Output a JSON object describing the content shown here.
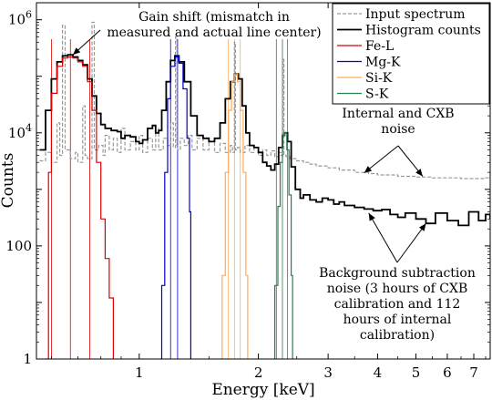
{
  "chart_data": {
    "type": "line",
    "xlabel": "Energy [keV]",
    "ylabel": "Counts",
    "xscale": "log",
    "yscale": "log",
    "xlim": [
      0.55,
      7.7
    ],
    "ylim": [
      1,
      2000000
    ],
    "x_ticks": [
      {
        "value": 1,
        "label": "1"
      },
      {
        "value": 2,
        "label": "2"
      },
      {
        "value": 3,
        "label": "3"
      },
      {
        "value": 4,
        "label": "4"
      },
      {
        "value": 5,
        "label": "5"
      },
      {
        "value": 6,
        "label": "6"
      },
      {
        "value": 7,
        "label": "7"
      }
    ],
    "y_ticks": [
      {
        "value": 1,
        "base": "1",
        "exp": ""
      },
      {
        "value": 100,
        "base": "100",
        "exp": ""
      },
      {
        "value": 10000,
        "base": "10",
        "exp": "4"
      },
      {
        "value": 1000000,
        "base": "10",
        "exp": "6"
      }
    ],
    "grid": false,
    "legend_position": "top-right",
    "series": [
      {
        "name": "Input spectrum",
        "color": "#999999",
        "style": "dashed",
        "points": [
          [
            0.56,
            3200
          ],
          [
            0.58,
            4500
          ],
          [
            0.6,
            3000
          ],
          [
            0.62,
            15000
          ],
          [
            0.63,
            4000
          ],
          [
            0.64,
            800000
          ],
          [
            0.65,
            5000
          ],
          [
            0.67,
            3500
          ],
          [
            0.69,
            4500
          ],
          [
            0.7,
            3000
          ],
          [
            0.72,
            30000
          ],
          [
            0.73,
            4000
          ],
          [
            0.74,
            3500
          ],
          [
            0.76,
            900000
          ],
          [
            0.77,
            5000
          ],
          [
            0.79,
            6000
          ],
          [
            0.81,
            4000
          ],
          [
            0.82,
            9000
          ],
          [
            0.84,
            5000
          ],
          [
            0.86,
            8000
          ],
          [
            0.88,
            4500
          ],
          [
            0.9,
            12000
          ],
          [
            0.92,
            5000
          ],
          [
            0.95,
            7000
          ],
          [
            0.98,
            5000
          ],
          [
            1.0,
            9000
          ],
          [
            1.02,
            4500
          ],
          [
            1.05,
            8000
          ],
          [
            1.08,
            5000
          ],
          [
            1.1,
            12000
          ],
          [
            1.12,
            5000
          ],
          [
            1.15,
            8000
          ],
          [
            1.18,
            6000
          ],
          [
            1.2,
            15000
          ],
          [
            1.22,
            5500
          ],
          [
            1.235,
            500000
          ],
          [
            1.245,
            6000
          ],
          [
            1.25,
            5000
          ],
          [
            1.27,
            8000
          ],
          [
            1.3,
            6000
          ],
          [
            1.33,
            9000
          ],
          [
            1.36,
            5000
          ],
          [
            1.4,
            8000
          ],
          [
            1.45,
            5000
          ],
          [
            1.5,
            7000
          ],
          [
            1.55,
            4500
          ],
          [
            1.6,
            6500
          ],
          [
            1.65,
            4500
          ],
          [
            1.7,
            6000
          ],
          [
            1.72,
            4500
          ],
          [
            1.74,
            400000
          ],
          [
            1.75,
            5000
          ],
          [
            1.77,
            5500
          ],
          [
            1.8,
            4500
          ],
          [
            1.85,
            6000
          ],
          [
            1.9,
            4500
          ],
          [
            1.95,
            5500
          ],
          [
            2.0,
            4000
          ],
          [
            2.05,
            5000
          ],
          [
            2.1,
            4000
          ],
          [
            2.15,
            4800
          ],
          [
            2.2,
            3800
          ],
          [
            2.25,
            4500
          ],
          [
            2.28,
            4000
          ],
          [
            2.307,
            200000
          ],
          [
            2.32,
            4000
          ],
          [
            2.35,
            3800
          ],
          [
            2.4,
            3500
          ],
          [
            2.5,
            3200
          ],
          [
            2.6,
            3000
          ],
          [
            2.7,
            2800
          ],
          [
            2.8,
            2600
          ],
          [
            3.0,
            2400
          ],
          [
            3.2,
            2200
          ],
          [
            3.5,
            2000
          ],
          [
            3.8,
            1900
          ],
          [
            4.0,
            1800
          ],
          [
            4.5,
            1700
          ],
          [
            5.0,
            1650
          ],
          [
            5.5,
            1600
          ],
          [
            6.0,
            1600
          ],
          [
            6.5,
            1550
          ],
          [
            7.0,
            1550
          ],
          [
            7.5,
            1600
          ],
          [
            7.7,
            1700
          ]
        ]
      },
      {
        "name": "Histogram counts",
        "color": "#000000",
        "style": "solid",
        "points": [
          [
            0.56,
            5000
          ],
          [
            0.58,
            25000
          ],
          [
            0.6,
            90000
          ],
          [
            0.62,
            180000
          ],
          [
            0.64,
            230000
          ],
          [
            0.66,
            240000
          ],
          [
            0.68,
            220000
          ],
          [
            0.7,
            190000
          ],
          [
            0.72,
            160000
          ],
          [
            0.74,
            90000
          ],
          [
            0.76,
            45000
          ],
          [
            0.78,
            22000
          ],
          [
            0.8,
            14000
          ],
          [
            0.82,
            12000
          ],
          [
            0.85,
            11000
          ],
          [
            0.88,
            10500
          ],
          [
            0.9,
            8000
          ],
          [
            0.92,
            9000
          ],
          [
            0.95,
            8500
          ],
          [
            0.98,
            7000
          ],
          [
            1.0,
            6500
          ],
          [
            1.02,
            7500
          ],
          [
            1.05,
            12000
          ],
          [
            1.08,
            13500
          ],
          [
            1.1,
            10000
          ],
          [
            1.12,
            11000
          ],
          [
            1.14,
            25000
          ],
          [
            1.17,
            80000
          ],
          [
            1.2,
            190000
          ],
          [
            1.23,
            230000
          ],
          [
            1.26,
            180000
          ],
          [
            1.3,
            80000
          ],
          [
            1.35,
            20000
          ],
          [
            1.4,
            9000
          ],
          [
            1.45,
            8000
          ],
          [
            1.5,
            7000
          ],
          [
            1.55,
            8000
          ],
          [
            1.6,
            15000
          ],
          [
            1.65,
            40000
          ],
          [
            1.7,
            80000
          ],
          [
            1.74,
            110000
          ],
          [
            1.78,
            90000
          ],
          [
            1.82,
            30000
          ],
          [
            1.86,
            10000
          ],
          [
            1.9,
            6000
          ],
          [
            1.95,
            5500
          ],
          [
            2.0,
            4500
          ],
          [
            2.05,
            3000
          ],
          [
            2.1,
            2600
          ],
          [
            2.15,
            2200
          ],
          [
            2.2,
            2800
          ],
          [
            2.25,
            5500
          ],
          [
            2.3,
            9000
          ],
          [
            2.33,
            10000
          ],
          [
            2.37,
            7000
          ],
          [
            2.42,
            2500
          ],
          [
            2.48,
            1000
          ],
          [
            2.55,
            700
          ],
          [
            2.6,
            800
          ],
          [
            2.7,
            650
          ],
          [
            2.8,
            600
          ],
          [
            2.9,
            700
          ],
          [
            3.0,
            650
          ],
          [
            3.1,
            550
          ],
          [
            3.2,
            600
          ],
          [
            3.3,
            520
          ],
          [
            3.5,
            480
          ],
          [
            3.7,
            450
          ],
          [
            3.9,
            420
          ],
          [
            4.1,
            440
          ],
          [
            4.3,
            360
          ],
          [
            4.5,
            320
          ],
          [
            4.7,
            380
          ],
          [
            5.0,
            300
          ],
          [
            5.3,
            250
          ],
          [
            5.6,
            380
          ],
          [
            6.0,
            280
          ],
          [
            6.4,
            230
          ],
          [
            6.8,
            400
          ],
          [
            7.2,
            280
          ],
          [
            7.5,
            360
          ],
          [
            7.7,
            300
          ]
        ]
      },
      {
        "name": "Fe-L",
        "color": "#dd0000",
        "style": "solid",
        "points": [
          [
            0.58,
            1
          ],
          [
            0.59,
            2000
          ],
          [
            0.6,
            50000
          ],
          [
            0.62,
            150000
          ],
          [
            0.64,
            210000
          ],
          [
            0.66,
            220000
          ],
          [
            0.68,
            210000
          ],
          [
            0.7,
            180000
          ],
          [
            0.72,
            150000
          ],
          [
            0.74,
            80000
          ],
          [
            0.76,
            25000
          ],
          [
            0.78,
            3000
          ],
          [
            0.8,
            300
          ],
          [
            0.82,
            60
          ],
          [
            0.84,
            12
          ],
          [
            0.86,
            1
          ]
        ]
      },
      {
        "name": "Mg-K",
        "color": "#0000cc",
        "style": "solid",
        "points": [
          [
            1.13,
            1
          ],
          [
            1.14,
            20
          ],
          [
            1.16,
            2000
          ],
          [
            1.18,
            40000
          ],
          [
            1.2,
            150000
          ],
          [
            1.23,
            220000
          ],
          [
            1.26,
            170000
          ],
          [
            1.29,
            60000
          ],
          [
            1.32,
            8000
          ],
          [
            1.34,
            400
          ],
          [
            1.35,
            1
          ]
        ]
      },
      {
        "name": "Si-K",
        "color": "#ffaa55",
        "style": "solid",
        "points": [
          [
            1.6,
            1
          ],
          [
            1.62,
            30
          ],
          [
            1.65,
            2000
          ],
          [
            1.68,
            25000
          ],
          [
            1.71,
            80000
          ],
          [
            1.74,
            110000
          ],
          [
            1.77,
            80000
          ],
          [
            1.8,
            25000
          ],
          [
            1.83,
            2000
          ],
          [
            1.86,
            30
          ],
          [
            1.88,
            1
          ]
        ]
      },
      {
        "name": "S-K",
        "color": "#2e7d4f",
        "style": "solid",
        "points": [
          [
            2.18,
            1
          ],
          [
            2.2,
            20
          ],
          [
            2.24,
            500
          ],
          [
            2.27,
            3000
          ],
          [
            2.3,
            9000
          ],
          [
            2.33,
            10000
          ],
          [
            2.36,
            5000
          ],
          [
            2.39,
            800
          ],
          [
            2.42,
            30
          ],
          [
            2.44,
            1
          ]
        ]
      }
    ],
    "line_centers": [
      {
        "series": "Fe-L",
        "color": "#dd0000",
        "x": [
          0.6,
          0.67,
          0.75
        ]
      },
      {
        "series": "Mg-K",
        "color": "#0000cc",
        "x": [
          1.2,
          1.25
        ]
      },
      {
        "series": "Si-K",
        "color": "#ffaa55",
        "x": [
          1.68,
          1.74,
          1.8
        ]
      },
      {
        "series": "S-K",
        "color": "#2e7d4f",
        "x": [
          2.22,
          2.3,
          2.37
        ]
      }
    ],
    "annotations": [
      {
        "id": "gain-shift",
        "lines": [
          "Gain shift (mismatch in",
          "measured and actual line center)"
        ],
        "arrow_targets": [
          [
            0.68,
            240000
          ]
        ]
      },
      {
        "id": "internal-cxb",
        "lines": [
          "Internal and CXB",
          "noise"
        ],
        "arrow_targets": [
          [
            3.7,
            1950
          ],
          [
            5.2,
            1700
          ]
        ]
      },
      {
        "id": "background-subtraction",
        "lines": [
          "Background subtraction",
          "noise (3 hours of CXB",
          "calibration and 112",
          "hours of internal",
          "calibration)"
        ],
        "arrow_targets": [
          [
            3.8,
            380
          ],
          [
            5.3,
            250
          ]
        ]
      }
    ]
  }
}
